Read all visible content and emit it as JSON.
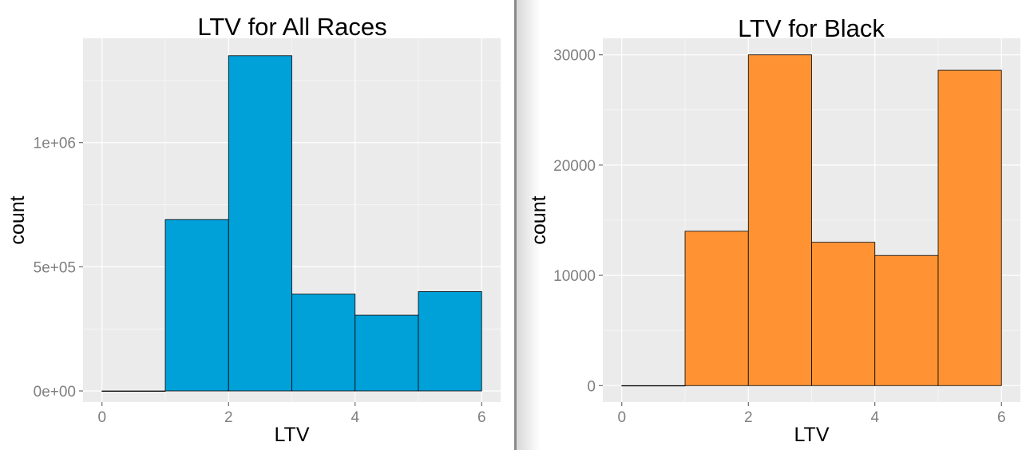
{
  "chart_data": [
    {
      "type": "bar",
      "title": "LTV for All Races",
      "xlabel": "LTV",
      "ylabel": "count",
      "bin_width": 1,
      "x": [
        0.5,
        1.5,
        2.5,
        3.5,
        4.5,
        5.5
      ],
      "values": [
        0,
        690000,
        1350000,
        390000,
        305000,
        400000
      ],
      "xlim": [
        -0.3,
        6.3
      ],
      "ylim": [
        -45000,
        1420000
      ],
      "x_ticks": [
        0,
        2,
        4,
        6
      ],
      "x_tick_labels": [
        "0",
        "2",
        "4",
        "6"
      ],
      "y_ticks": [
        0,
        500000,
        1000000
      ],
      "y_tick_labels": [
        "0e+00",
        "5e+05",
        "1e+06"
      ],
      "fill": "#00A0D8",
      "grid": true,
      "panel_bg": "#EBEBEB"
    },
    {
      "type": "bar",
      "title": "LTV for Black",
      "xlabel": "LTV",
      "ylabel": "count",
      "bin_width": 1,
      "x": [
        0.5,
        1.5,
        2.5,
        3.5,
        4.5,
        5.5
      ],
      "values": [
        0,
        14000,
        30000,
        13000,
        11800,
        28600
      ],
      "xlim": [
        -0.3,
        6.3
      ],
      "ylim": [
        -1500,
        31500
      ],
      "x_ticks": [
        0,
        2,
        4,
        6
      ],
      "x_tick_labels": [
        "0",
        "2",
        "4",
        "6"
      ],
      "y_ticks": [
        0,
        10000,
        20000,
        30000
      ],
      "y_tick_labels": [
        "0",
        "10000",
        "20000",
        "30000"
      ],
      "fill": "#FF9333",
      "grid": true,
      "panel_bg": "#EBEBEB"
    }
  ]
}
